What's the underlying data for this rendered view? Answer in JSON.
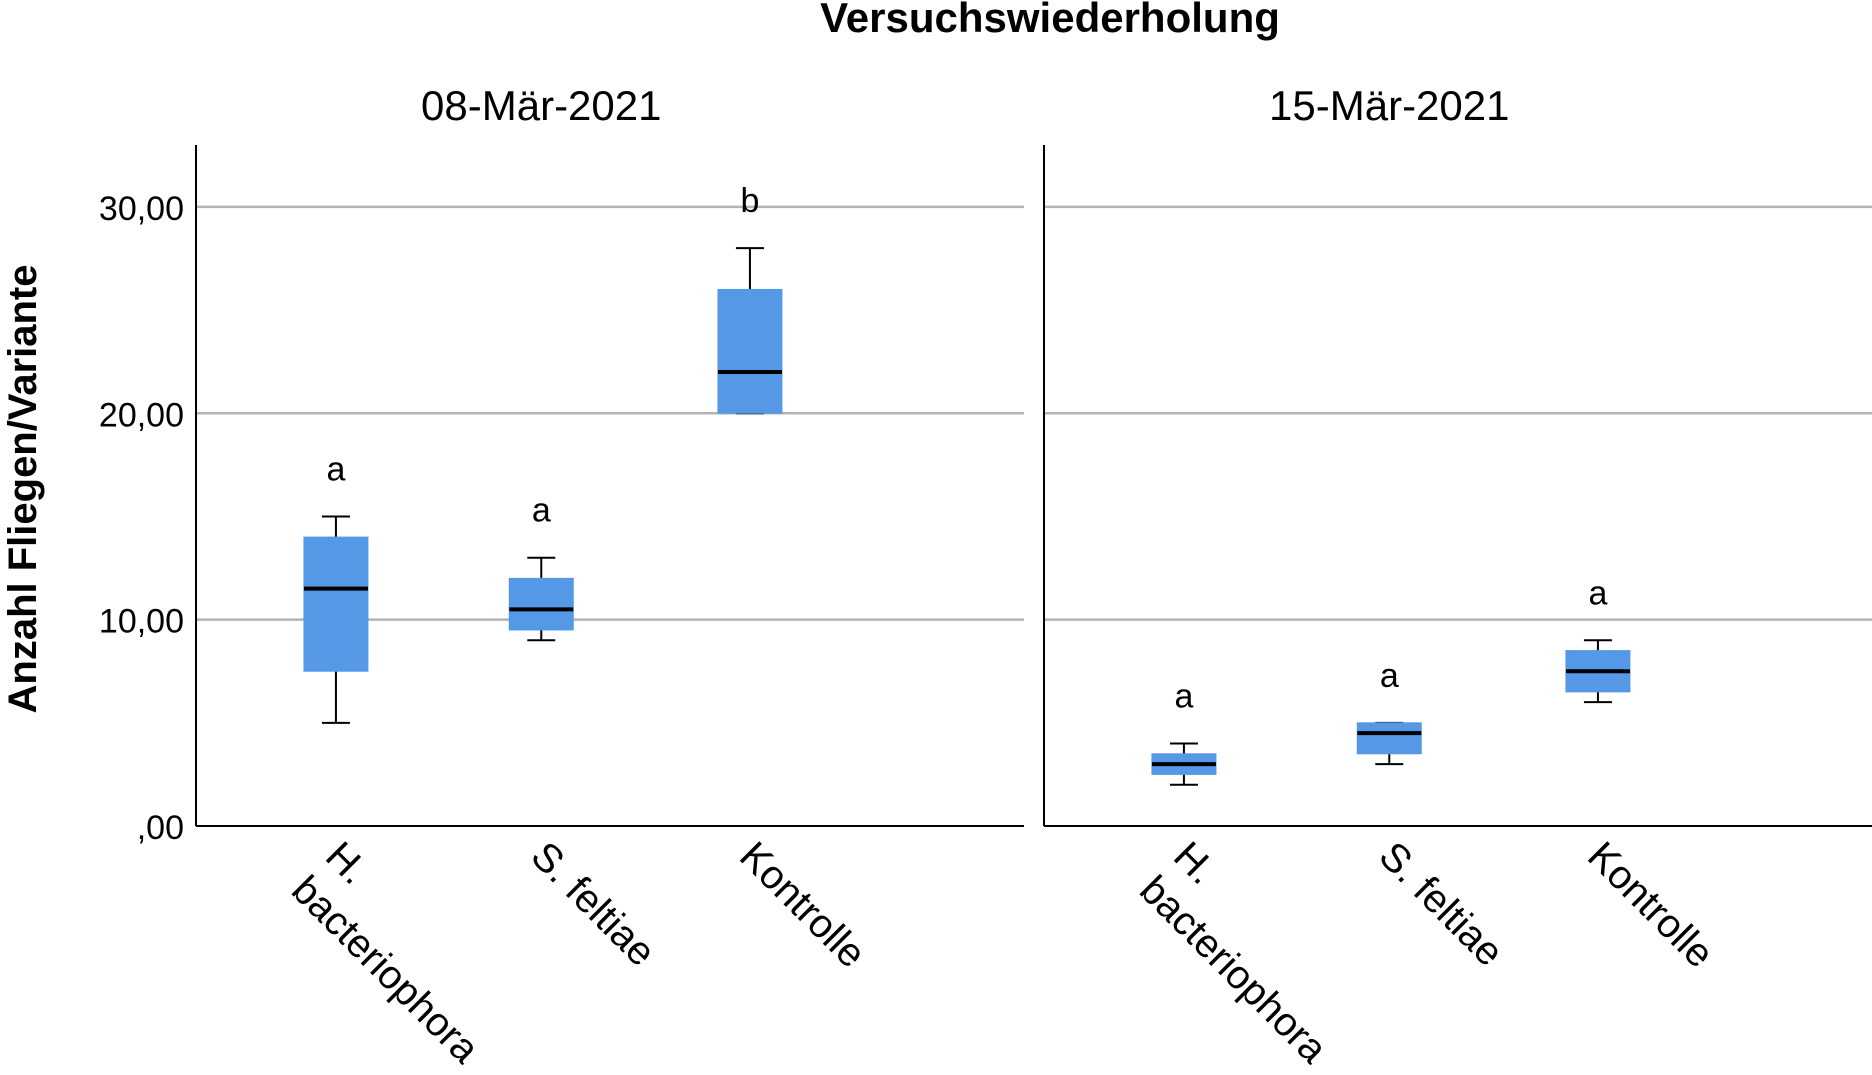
{
  "chart_data": {
    "type": "boxplot",
    "title": "Versuchswiederholung",
    "ylabel": "Anzahl Fliegen/Variante",
    "ylim": [
      0,
      33
    ],
    "yticks": [
      0,
      10,
      20,
      30
    ],
    "ytick_labels": [
      ",00",
      "10,00",
      "20,00",
      "30,00"
    ],
    "gridlines": [
      10,
      20,
      30
    ],
    "box_color": "#5599e6",
    "categories": [
      [
        "H.",
        "bacteriophora"
      ],
      [
        "S. feltiae"
      ],
      [
        "Kontrolle"
      ]
    ],
    "panels": [
      {
        "label": "08-Mär-2021",
        "boxes": [
          {
            "category": "H. bacteriophora",
            "min": 5,
            "q1": 7.5,
            "median": 11.5,
            "q3": 14,
            "max": 15,
            "letter": "a"
          },
          {
            "category": "S. feltiae",
            "min": 9,
            "q1": 9.5,
            "median": 10.5,
            "q3": 12,
            "max": 13,
            "letter": "a"
          },
          {
            "category": "Kontrolle",
            "min": 20,
            "q1": 20,
            "median": 22,
            "q3": 26,
            "max": 28,
            "letter": "b"
          }
        ]
      },
      {
        "label": "15-Mär-2021",
        "boxes": [
          {
            "category": "H. bacteriophora",
            "min": 2,
            "q1": 2.5,
            "median": 3,
            "q3": 3.5,
            "max": 4,
            "letter": "a"
          },
          {
            "category": "S. feltiae",
            "min": 3,
            "q1": 3.5,
            "median": 4.5,
            "q3": 5,
            "max": 5,
            "letter": "a"
          },
          {
            "category": "Kontrolle",
            "min": 6,
            "q1": 6.5,
            "median": 7.5,
            "q3": 8.5,
            "max": 9,
            "letter": "a"
          }
        ]
      }
    ]
  }
}
